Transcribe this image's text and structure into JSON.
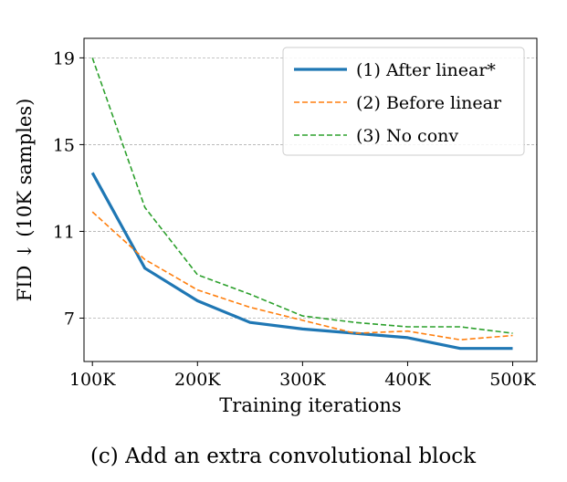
{
  "caption": "(c) Add an extra convolutional block",
  "chart_data": {
    "type": "line",
    "x": [
      100,
      150,
      200,
      250,
      300,
      350,
      400,
      450,
      500
    ],
    "x_tick_values": [
      100,
      200,
      300,
      400,
      500
    ],
    "x_tick_labels": [
      "100K",
      "200K",
      "300K",
      "400K",
      "500K"
    ],
    "y_tick_values": [
      7,
      11,
      15,
      19
    ],
    "y_tick_labels": [
      "7",
      "11",
      "15",
      "19"
    ],
    "xlim": [
      92,
      523
    ],
    "ylim": [
      5.0,
      19.9
    ],
    "xlabel": "Training iterations",
    "ylabel": "FID ↓ (10K samples)",
    "grid": "horizontal-dashed",
    "legend_position": "top-right",
    "series": [
      {
        "name": "(1) After linear*",
        "color": "#1f77b4",
        "style": "solid",
        "values": [
          13.7,
          9.3,
          7.8,
          6.8,
          6.5,
          6.3,
          6.1,
          5.6,
          5.6
        ]
      },
      {
        "name": "(2) Before linear",
        "color": "#ff7f0e",
        "style": "dashed",
        "values": [
          11.9,
          9.7,
          8.3,
          7.5,
          6.9,
          6.3,
          6.4,
          6.0,
          6.2
        ]
      },
      {
        "name": "(3) No conv",
        "color": "#2ca02c",
        "style": "dashed",
        "values": [
          19.0,
          12.1,
          9.0,
          8.1,
          7.1,
          6.8,
          6.6,
          6.6,
          6.3
        ]
      }
    ]
  }
}
